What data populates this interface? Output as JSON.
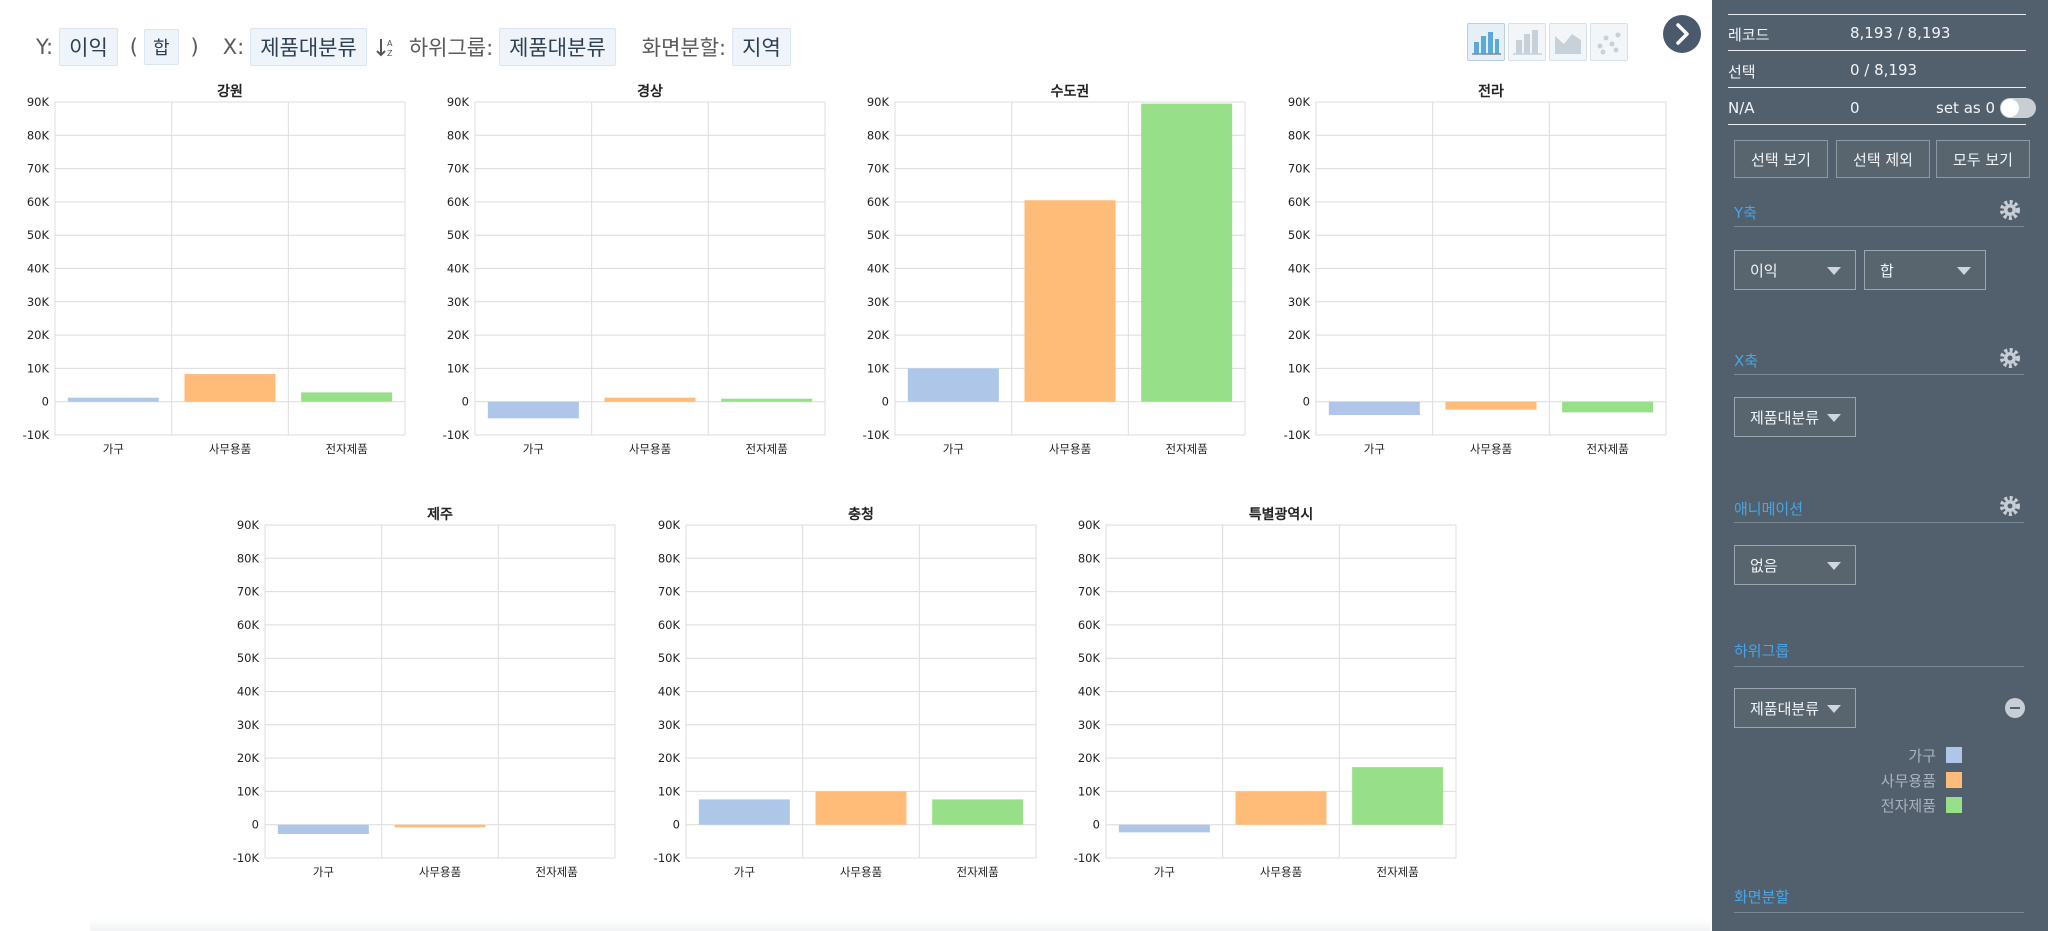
{
  "toolbar": {
    "y_label": "Y:",
    "y_value": "이익",
    "agg_open": "(",
    "agg_value": "합",
    "agg_close": ")",
    "x_label": "X:",
    "x_value": "제품대분류",
    "subgroup_label": "하위그룹:",
    "subgroup_value": "제품대분류",
    "split_label": "화면분할:",
    "split_value": "지역"
  },
  "chart_type_icons": [
    "bar-chart-icon",
    "bar-chart-gray-icon",
    "area-chart-icon",
    "scatter-chart-icon"
  ],
  "panel": {
    "records_label": "레코드",
    "records_value": "8,193 / 8,193",
    "selection_label": "선택",
    "selection_value": "0 / 8,193",
    "na_label": "N/A",
    "na_value": "0",
    "set_as_zero_label": "set as 0",
    "buttons": {
      "show_selection": "선택 보기",
      "exclude_selection": "선택 제외",
      "show_all": "모두 보기"
    },
    "y_axis": {
      "title": "Y축",
      "field": "이익",
      "agg": "합"
    },
    "x_axis": {
      "title": "X축",
      "field": "제품대분류"
    },
    "animation": {
      "title": "애니메이션",
      "value": "없음"
    },
    "subgroup": {
      "title": "하위그룹",
      "field": "제품대분류",
      "legend": [
        {
          "label": "가구",
          "color": "#aec7e8"
        },
        {
          "label": "사무용품",
          "color": "#ffbb78"
        },
        {
          "label": "전자제품",
          "color": "#98df8a"
        }
      ]
    },
    "split": {
      "title": "화면분할"
    }
  },
  "chart_data": {
    "type": "bar",
    "categories": [
      "가구",
      "사무용품",
      "전자제품"
    ],
    "colors": [
      "#aec7e8",
      "#ffbb78",
      "#98df8a"
    ],
    "ylim": [
      -10000,
      90000
    ],
    "yticks": [
      -10000,
      0,
      10000,
      20000,
      30000,
      40000,
      50000,
      60000,
      70000,
      80000,
      90000
    ],
    "ytick_labels": [
      "-10K",
      "0",
      "10K",
      "20K",
      "30K",
      "40K",
      "50K",
      "60K",
      "70K",
      "80K",
      "90K"
    ],
    "grid": true,
    "panels": [
      {
        "title": "강원",
        "values": [
          1200,
          8300,
          2800
        ]
      },
      {
        "title": "경상",
        "values": [
          -5000,
          1200,
          900
        ]
      },
      {
        "title": "수도권",
        "values": [
          10000,
          60500,
          89500
        ]
      },
      {
        "title": "전라",
        "values": [
          -4000,
          -2400,
          -3200
        ]
      },
      {
        "title": "제주",
        "values": [
          -2800,
          -800,
          0
        ]
      },
      {
        "title": "충청",
        "values": [
          7600,
          10000,
          7600
        ]
      },
      {
        "title": "특별광역시",
        "values": [
          -2300,
          10000,
          17300
        ]
      }
    ]
  }
}
